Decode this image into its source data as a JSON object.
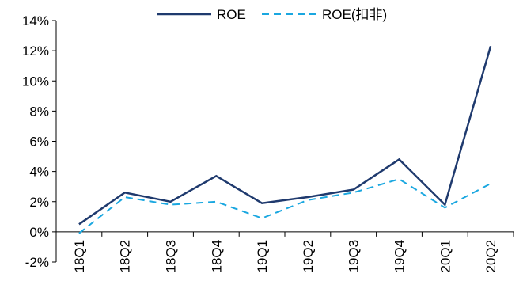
{
  "chart_data": {
    "type": "line",
    "title": "",
    "xlabel": "",
    "ylabel": "",
    "categories": [
      "18Q1",
      "18Q2",
      "18Q3",
      "18Q4",
      "19Q1",
      "19Q2",
      "19Q3",
      "19Q4",
      "20Q1",
      "20Q2"
    ],
    "ylim": [
      -2,
      14
    ],
    "yticks": [
      -2,
      0,
      2,
      4,
      6,
      8,
      10,
      12,
      14
    ],
    "ytick_labels": [
      "-2%",
      "0%",
      "2%",
      "4%",
      "6%",
      "8%",
      "10%",
      "12%",
      "14%"
    ],
    "grid": false,
    "legend_position": "top",
    "series": [
      {
        "name": "ROE",
        "values": [
          0.5,
          2.6,
          2.0,
          3.7,
          1.9,
          2.3,
          2.8,
          4.8,
          1.8,
          12.3
        ],
        "color": "#1f3a6e",
        "dash": "solid"
      },
      {
        "name": "ROE(扣非)",
        "values": [
          -0.1,
          2.3,
          1.8,
          2.0,
          0.9,
          2.1,
          2.6,
          3.5,
          1.6,
          3.2
        ],
        "color": "#1aa7e0",
        "dash": "dashed"
      }
    ]
  }
}
